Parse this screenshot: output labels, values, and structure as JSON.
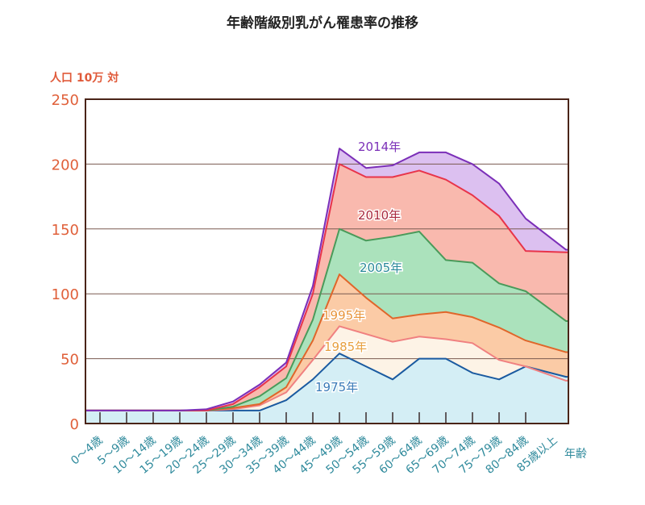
{
  "chart_data": {
    "type": "area",
    "title": "年齢階級別乳がん罹患率の推移",
    "ylabel": "人口 10万 対",
    "xlabel": "年齢",
    "ylim": [
      0,
      250
    ],
    "yticks": [
      0,
      50,
      100,
      150,
      200,
      250
    ],
    "grid": true,
    "categories": [
      "0～4歳",
      "5～9歳",
      "10～14歳",
      "15～19歳",
      "20～24歳",
      "25～29歳",
      "30～34歳",
      "35～39歳",
      "40～44歳",
      "45～49歳",
      "50～54歳",
      "55～59歳",
      "60～64歳",
      "65～69歳",
      "70～74歳",
      "75～79歳",
      "80～84歳",
      "85歳以上"
    ],
    "series": [
      {
        "name": "2014年",
        "line": "#7b2fb8",
        "fill": "#dcc0f0",
        "label_color": "#7b2fb8",
        "values": [
          10,
          10,
          10,
          10,
          11,
          17,
          30,
          47,
          106,
          212,
          197,
          199,
          209,
          209,
          200,
          185,
          158,
          134
        ]
      },
      {
        "name": "2010年",
        "line": "#e8344a",
        "fill": "#f9b9ae",
        "label_color": "#a8283e",
        "values": [
          10,
          10,
          10,
          10,
          10,
          15,
          28,
          44,
          100,
          200,
          190,
          190,
          195,
          188,
          176,
          160,
          133,
          132
        ]
      },
      {
        "name": "2005年",
        "line": "#4a9a5a",
        "fill": "#abe2bc",
        "label_color": "#2a8a9a",
        "values": [
          10,
          10,
          10,
          10,
          10,
          13,
          21,
          35,
          80,
          150,
          141,
          144,
          148,
          126,
          124,
          108,
          102,
          79
        ]
      },
      {
        "name": "1995年",
        "line": "#e0662a",
        "fill": "#fbcba6",
        "label_color": "#e8943a",
        "values": [
          10,
          10,
          10,
          10,
          10,
          12,
          15,
          28,
          64,
          115,
          97,
          81,
          84,
          86,
          82,
          74,
          64,
          55
        ]
      },
      {
        "name": "1985年",
        "line": "#f08080",
        "fill": "#fdf3e6",
        "label_color": "#e8a040",
        "values": [
          10,
          10,
          10,
          10,
          10,
          11,
          14,
          24,
          49,
          75,
          69,
          63,
          67,
          65,
          62,
          49,
          44,
          33
        ]
      },
      {
        "name": "1975年",
        "line": "#1a5aa0",
        "fill": "#d4eef5",
        "label_color": "#3a7ab8",
        "values": [
          10,
          10,
          10,
          10,
          10,
          10,
          10,
          18,
          34,
          54,
          44,
          34,
          50,
          50,
          39,
          34,
          44,
          36
        ]
      }
    ]
  }
}
